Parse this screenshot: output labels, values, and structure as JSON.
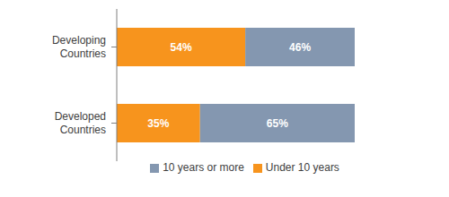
{
  "chart_data": {
    "type": "bar",
    "orientation": "horizontal",
    "stacked": true,
    "data_labels": true,
    "tick_labels": "y",
    "legend": "bottom",
    "categories": [
      "Developing Countries",
      "Developed Countries"
    ],
    "xlim": [
      0,
      100
    ],
    "series": [
      {
        "name": "Under 10 years",
        "color": "#F7941D",
        "values": [
          54,
          35
        ],
        "value_labels": [
          "54%",
          "35%"
        ]
      },
      {
        "name": "10 years or more",
        "color": "#8497B0",
        "values": [
          46,
          65
        ],
        "value_labels": [
          "46%",
          "65%"
        ]
      }
    ]
  }
}
